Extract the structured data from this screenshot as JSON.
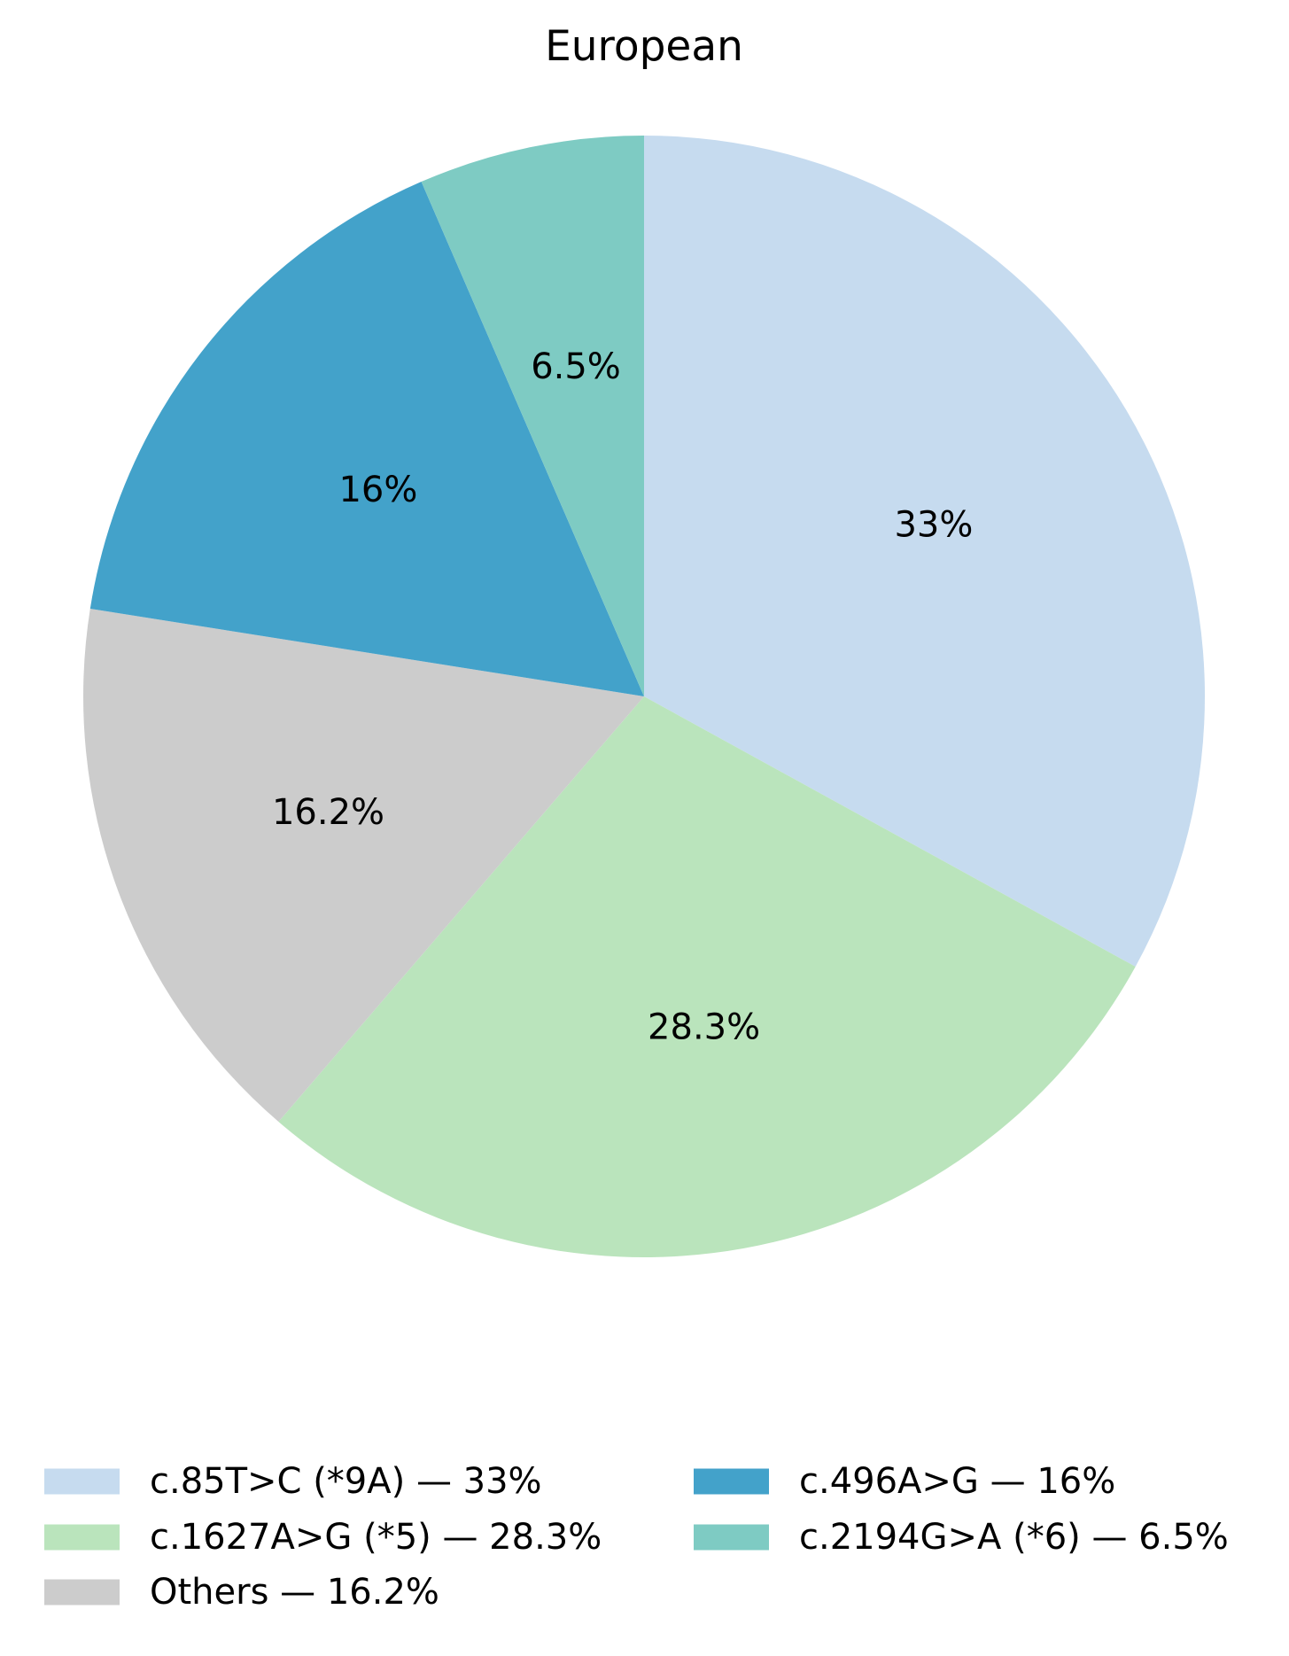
{
  "chart_data": {
    "type": "pie",
    "title": "European",
    "start_angle_deg": 90,
    "direction": "clockwise",
    "slices": [
      {
        "label": "c.85T>C (*9A)",
        "value": 33,
        "pct_label": "33%",
        "legend_label": "c.85T>C (*9A) — 33%",
        "color": "#c6dbef"
      },
      {
        "label": "c.1627A>G (*5)",
        "value": 28.3,
        "pct_label": "28.3%",
        "legend_label": "c.1627A>G (*5) — 28.3%",
        "color": "#bae4bc"
      },
      {
        "label": "Others",
        "value": 16.2,
        "pct_label": "16.2%",
        "legend_label": "Others — 16.2%",
        "color": "#cccccc"
      },
      {
        "label": "c.496A>G",
        "value": 16,
        "pct_label": "16%",
        "legend_label": "c.496A>G — 16%",
        "color": "#43a2ca"
      },
      {
        "label": "c.2194G>A (*6)",
        "value": 6.5,
        "pct_label": "6.5%",
        "legend_label": "c.2194G>A (*6) — 6.5%",
        "color": "#7ecbc3"
      }
    ],
    "legend": {
      "placement": "bottom",
      "columns": 2,
      "entries": [
        {
          "text": "c.85T>C (*9A) — 33%",
          "color": "#c6dbef"
        },
        {
          "text": "c.1627A>G (*5) — 28.3%",
          "color": "#bae4bc"
        },
        {
          "text": "Others — 16.2%",
          "color": "#cccccc"
        },
        {
          "text": "c.496A>G — 16%",
          "color": "#43a2ca"
        },
        {
          "text": "c.2194G>A (*6) — 6.5%",
          "color": "#7ecbc3"
        }
      ]
    }
  }
}
